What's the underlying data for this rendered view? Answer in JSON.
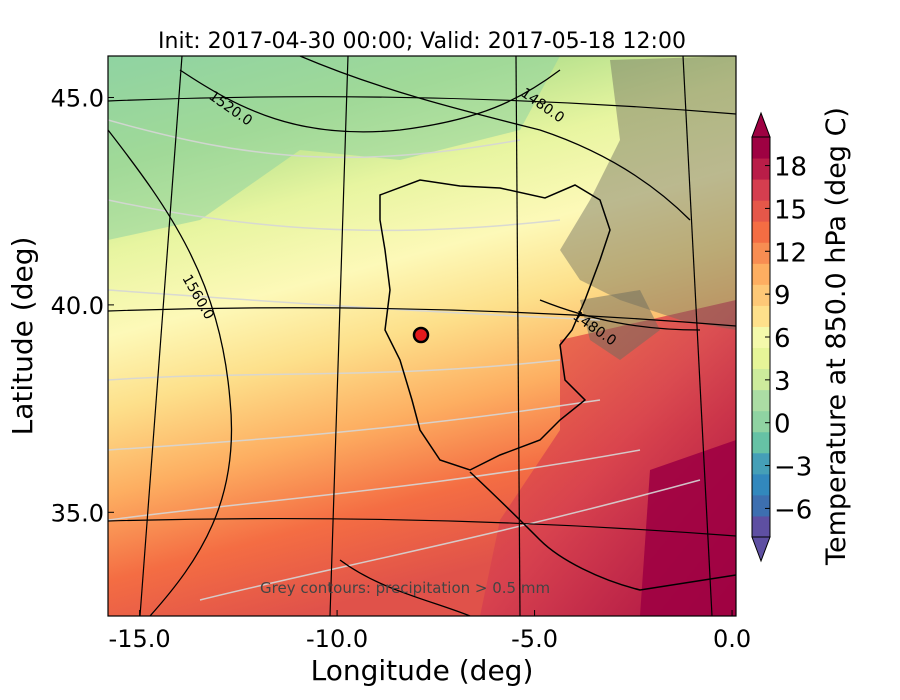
{
  "chart_data": {
    "type": "heatmap",
    "title": "Init: 2017-04-30 00:00; Valid: 2017-05-18 12:00",
    "xlabel": "Longitude (deg)",
    "ylabel": "Latitude (deg)",
    "xlim": [
      -15.8,
      0.1
    ],
    "ylim": [
      32.5,
      46.0
    ],
    "x_ticks": [
      -15.0,
      -10.0,
      -5.0,
      0.0
    ],
    "x_tick_labels": [
      "-15.0",
      "-10.0",
      "-5.0",
      "0.0"
    ],
    "y_ticks": [
      35.0,
      40.0,
      45.0
    ],
    "y_tick_labels": [
      "35.0",
      "40.0",
      "45.0"
    ],
    "colorbar": {
      "label": "Temperature at 850.0 hPa (deg C)",
      "range": [
        -8,
        20
      ],
      "ticks": [
        -6,
        -3,
        0,
        3,
        6,
        9,
        12,
        15,
        18
      ],
      "tick_labels": [
        "−6",
        "−3",
        "0",
        "3",
        "6",
        "9",
        "12",
        "15",
        "18"
      ],
      "colormap": "Spectral_r",
      "extend": "both"
    },
    "geopotential_contours": [
      {
        "label": "1480.0"
      },
      {
        "label": "1520.0"
      },
      {
        "label": "1560.0"
      },
      {
        "label": "1480.0"
      }
    ],
    "annotation": "Grey contours: precipitation > 0.5 mm",
    "marker": {
      "lon": -7.6,
      "lat": 39.4,
      "color": "#e41a1c"
    }
  }
}
